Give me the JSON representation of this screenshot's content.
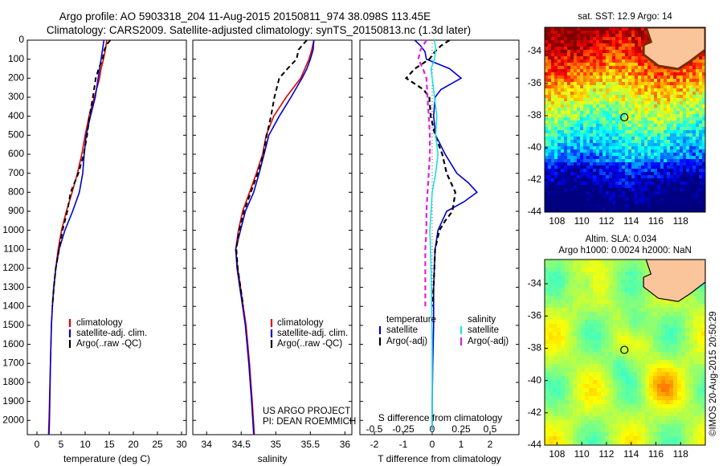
{
  "title": {
    "line1": "Argo profile: AO 5903318_204 11-Aug-2015 20150811_974 38.098S 113.45E",
    "line2": "Climatology: CARS2009. Satellite-adjusted climatology: synTS_20150813.nc (1.3d later)"
  },
  "colors": {
    "climatology": "#e00000",
    "satellite": "#0000cc",
    "argo": "#000000",
    "salinity_satellite": "#22dddd",
    "salinity_argo": "#dd22dd"
  },
  "chart_data": [
    {
      "type": "line",
      "xlabel": "temperature (deg C)",
      "ylabel": "",
      "xlim": [
        -2,
        31
      ],
      "ylim": [
        2075,
        0
      ],
      "xticks": [
        0,
        5,
        10,
        15,
        20,
        25,
        30
      ],
      "yticks": [
        0,
        100,
        200,
        300,
        400,
        500,
        600,
        700,
        800,
        900,
        1000,
        1100,
        1200,
        1300,
        1400,
        1500,
        1600,
        1700,
        1800,
        1900,
        2000
      ],
      "legend": [
        "climatology",
        "satellite-adj. clim.",
        "Argo(..raw -QC)"
      ],
      "legend_placement": "center-left",
      "series": [
        {
          "name": "climatology",
          "style": "solid",
          "depth": [
            0,
            50,
            100,
            150,
            200,
            300,
            400,
            500,
            600,
            700,
            800,
            900,
            1000,
            1100,
            1200,
            1300,
            1400,
            1500,
            1700,
            2000,
            2075
          ],
          "values": [
            14.5,
            14.2,
            13.8,
            13.3,
            13.0,
            11.9,
            10.8,
            10.0,
            9.3,
            8.4,
            7.3,
            6.1,
            5.1,
            4.4,
            3.9,
            3.5,
            3.2,
            3.0,
            2.8,
            2.5,
            2.4
          ]
        },
        {
          "name": "satellite-adj. clim.",
          "style": "solid",
          "depth": [
            0,
            50,
            100,
            150,
            200,
            300,
            400,
            500,
            600,
            700,
            800,
            900,
            1000,
            1100,
            1200,
            1300,
            1400,
            1500,
            1700,
            2000,
            2075
          ],
          "values": [
            13.9,
            13.6,
            13.3,
            13.0,
            12.7,
            12.1,
            11.1,
            10.2,
            9.8,
            9.5,
            8.8,
            7.4,
            5.8,
            4.6,
            3.9,
            3.5,
            3.2,
            3.0,
            2.8,
            2.6,
            2.5
          ]
        },
        {
          "name": "Argo(..raw -QC)",
          "style": "dashed",
          "depth": [
            0,
            20,
            50,
            100,
            150,
            200,
            300,
            400,
            500,
            600,
            700,
            800,
            900,
            1000,
            1100,
            1200,
            1300,
            1400
          ],
          "values": [
            15.2,
            14.6,
            14.0,
            13.6,
            12.8,
            12.2,
            11.6,
            10.9,
            10.4,
            9.7,
            8.6,
            7.0,
            6.3,
            5.3,
            4.6,
            3.9,
            3.5,
            3.2
          ]
        }
      ]
    },
    {
      "type": "line",
      "xlabel": "salinity",
      "ylabel": "",
      "xlim": [
        33.8,
        36.1
      ],
      "ylim": [
        2075,
        0
      ],
      "xticks": [
        34,
        34.5,
        35,
        35.5,
        36
      ],
      "legend": [
        "climatology",
        "satellite-adj. clim.",
        "Argo(..raw -QC)"
      ],
      "legend_placement": "center-right",
      "annotation": [
        "US ARGO PROJECT",
        "PI: DEAN ROEMMICH"
      ],
      "series": [
        {
          "name": "climatology",
          "style": "solid",
          "depth": [
            0,
            50,
            100,
            150,
            200,
            300,
            400,
            500,
            600,
            700,
            800,
            900,
            1000,
            1100,
            1200,
            1300,
            1400,
            1500,
            1700,
            1900,
            2075
          ],
          "values": [
            35.55,
            35.52,
            35.48,
            35.42,
            35.36,
            35.15,
            34.97,
            34.86,
            34.81,
            34.72,
            34.62,
            34.52,
            34.46,
            34.42,
            34.45,
            34.49,
            34.53,
            34.57,
            34.62,
            34.66,
            34.69
          ]
        },
        {
          "name": "satellite-adj. clim.",
          "style": "solid",
          "depth": [
            0,
            50,
            100,
            150,
            200,
            300,
            400,
            500,
            600,
            700,
            800,
            900,
            1000,
            1100,
            1200,
            1300,
            1400,
            1500,
            1700,
            1900,
            2075
          ],
          "values": [
            35.55,
            35.54,
            35.5,
            35.45,
            35.38,
            35.22,
            35.05,
            34.9,
            34.83,
            34.76,
            34.68,
            34.56,
            34.49,
            34.42,
            34.44,
            34.48,
            34.52,
            34.56,
            34.61,
            34.65,
            34.68
          ]
        },
        {
          "name": "Argo(..raw -QC)",
          "style": "dashed",
          "depth": [
            0,
            20,
            50,
            100,
            150,
            200,
            300,
            400,
            500,
            600,
            700,
            800,
            900,
            1000,
            1100,
            1200,
            1300,
            1400
          ],
          "values": [
            35.45,
            35.4,
            35.33,
            35.3,
            35.17,
            35.05,
            34.98,
            34.93,
            34.87,
            34.82,
            34.74,
            34.64,
            34.54,
            34.47,
            34.43,
            34.45,
            34.49,
            34.53
          ]
        }
      ]
    },
    {
      "type": "line",
      "xlabel": "T difference from climatology",
      "xlabel_top": "S difference from climatology",
      "ylabel": "",
      "xlim": [
        -2.5,
        3.0
      ],
      "ylim": [
        2075,
        0
      ],
      "xticks": [
        -2,
        -1,
        0,
        1,
        2
      ],
      "xticks_top": [
        -0.5,
        -0.25,
        0,
        0.25,
        0.5
      ],
      "legend_left_title": "temperature",
      "legend_right_title": "salinity",
      "legend": [
        "satellite",
        "Argo(-adj)",
        "satellite",
        "Argo(-adj)"
      ],
      "legend_placement": "center",
      "series": [
        {
          "name": "satellite",
          "quantity": "temperature",
          "style": "solid",
          "depth": [
            0,
            30,
            60,
            100,
            150,
            200,
            260,
            300,
            400,
            500,
            600,
            700,
            750,
            800,
            850,
            900,
            1000,
            1100,
            1300,
            1500,
            1700,
            1900,
            2050
          ],
          "values": [
            -0.6,
            -0.4,
            -0.25,
            -0.2,
            0.6,
            1.0,
            0.3,
            0.1,
            0.05,
            0.12,
            0.45,
            0.85,
            1.25,
            1.55,
            1.1,
            0.5,
            0.2,
            0.1,
            0.05,
            0.05,
            0.02,
            0.0,
            0.0
          ]
        },
        {
          "name": "Argo(-adj)",
          "quantity": "temperature",
          "style": "dashed",
          "depth": [
            0,
            30,
            60,
            100,
            150,
            200,
            260,
            300,
            400,
            500,
            600,
            700,
            800,
            900,
            950,
            1000,
            1100,
            1300,
            1400
          ],
          "values": [
            0.6,
            0.3,
            0.1,
            -0.1,
            -0.6,
            -0.9,
            -0.3,
            -0.1,
            -0.05,
            0.1,
            0.35,
            0.5,
            0.8,
            0.7,
            0.45,
            0.25,
            0.1,
            0.05,
            0.0
          ]
        },
        {
          "name": "satellite",
          "quantity": "salinity",
          "style": "solid",
          "depth": [
            0,
            50,
            100,
            150,
            200,
            300,
            400,
            500,
            600,
            700,
            800,
            900,
            1000,
            1200,
            1400,
            1600,
            1800,
            2050
          ],
          "values": [
            0.02,
            0.03,
            0.02,
            -0.01,
            0.0,
            0.02,
            0.04,
            0.03,
            0.05,
            0.03,
            0.0,
            -0.01,
            -0.02,
            -0.01,
            -0.005,
            0.0,
            0.0,
            0.0
          ]
        },
        {
          "name": "Argo(-adj)",
          "quantity": "salinity",
          "style": "dashed",
          "depth": [
            0,
            50,
            100,
            150,
            200,
            300,
            400,
            500,
            600,
            700,
            800,
            900,
            1000,
            1100,
            1200,
            1300,
            1400
          ],
          "values": [
            -0.05,
            -0.1,
            -0.12,
            -0.08,
            -0.05,
            -0.04,
            -0.03,
            -0.02,
            -0.02,
            -0.03,
            -0.04,
            -0.05,
            -0.05,
            -0.06,
            -0.06,
            -0.06,
            -0.06
          ]
        }
      ]
    },
    {
      "type": "heatmap",
      "title": "sat. SST: 12.9 Argo: 14",
      "xlim": [
        107,
        120
      ],
      "ylim": [
        -44,
        -32.5
      ],
      "xticks": [
        108,
        110,
        112,
        114,
        116,
        118
      ],
      "yticks": [
        -34,
        -36,
        -38,
        -40,
        -42,
        -44
      ],
      "marker": {
        "lon": 113.45,
        "lat": -38.098
      }
    },
    {
      "type": "heatmap",
      "title_line1": "Altim. SLA: 0.034",
      "title_line2": "Argo h1000: 0.0024 h2000: NaN",
      "xlim": [
        107,
        120
      ],
      "ylim": [
        -44,
        -32.5
      ],
      "xticks": [
        108,
        110,
        112,
        114,
        116,
        118
      ],
      "yticks": [
        -34,
        -36,
        -38,
        -40,
        -42,
        -44
      ],
      "marker": {
        "lon": 113.45,
        "lat": -38.098
      }
    }
  ],
  "footer_stamp": "©IMOS 20-Aug-2015 20:50:29"
}
